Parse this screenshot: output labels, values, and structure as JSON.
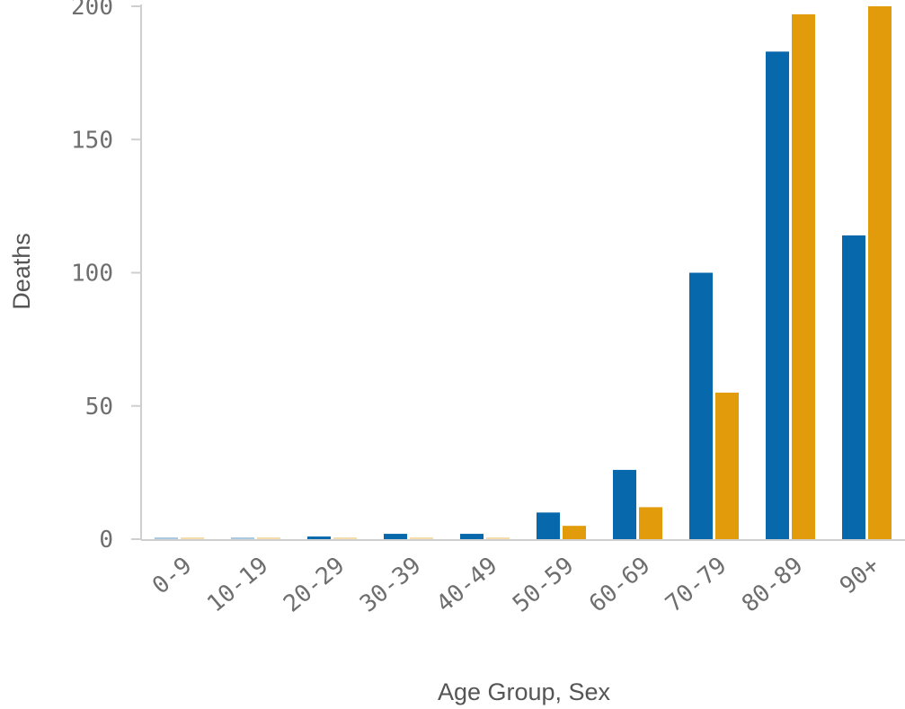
{
  "chart_data": {
    "type": "bar",
    "xlabel": "Age Group, Sex",
    "ylabel": "Deaths",
    "ylim": [
      0,
      200
    ],
    "yticks": [
      0,
      50,
      100,
      150,
      200
    ],
    "categories": [
      "0-9",
      "10-19",
      "20-29",
      "30-39",
      "40-49",
      "50-59",
      "60-69",
      "70-79",
      "80-89",
      "90+"
    ],
    "series": [
      {
        "color": "#0868ac",
        "values": [
          0,
          0,
          1,
          2,
          2,
          10,
          26,
          100,
          183,
          114
        ]
      },
      {
        "color": "#e29c0b",
        "values": [
          0,
          0,
          0,
          0,
          0,
          5,
          12,
          55,
          197,
          200
        ]
      }
    ],
    "grid": false,
    "legend": "none"
  }
}
